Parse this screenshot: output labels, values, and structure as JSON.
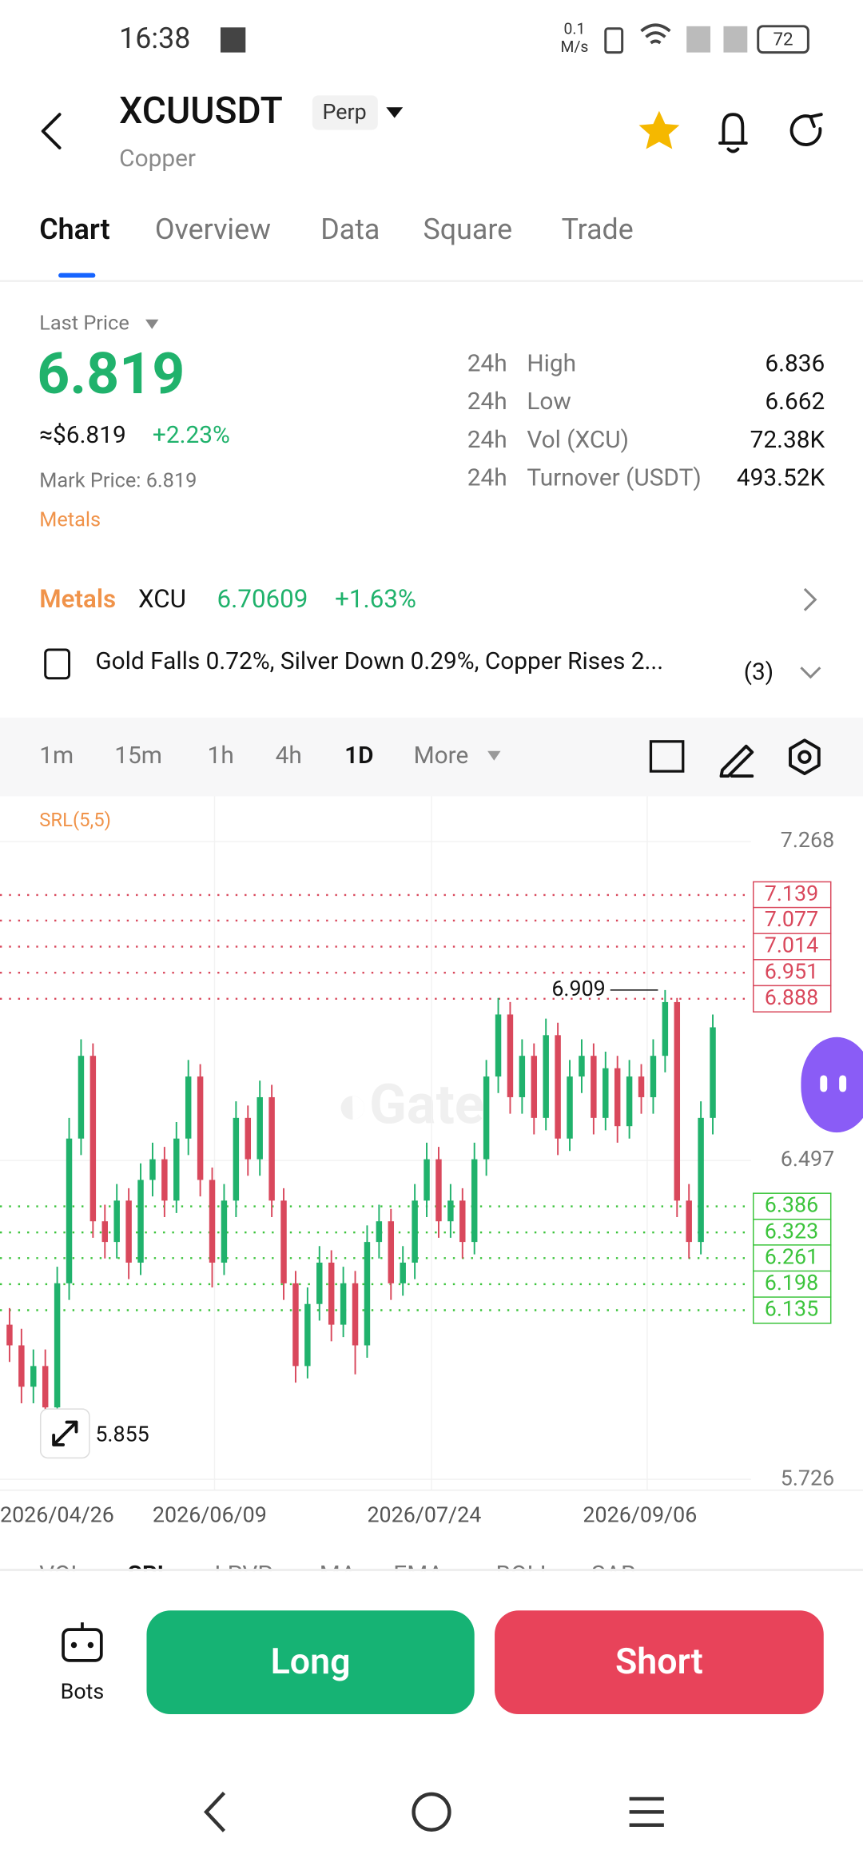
{
  "status_bar": {
    "time": "16:38",
    "speed": "0.1",
    "speed_unit": "M/s",
    "battery": "72"
  },
  "header": {
    "symbol": "XCUUSDT",
    "tag": "Perp",
    "name": "Copper"
  },
  "tabs": [
    "Chart",
    "Overview",
    "Data",
    "Square",
    "Trade"
  ],
  "price": {
    "label": "Last Price",
    "value": "6.819",
    "usd": "≈$6.819",
    "change": "+2.23%",
    "mark": "Mark Price: 6.819",
    "category": "Metals"
  },
  "stats": [
    [
      "24h",
      "High",
      "6.836"
    ],
    [
      "24h",
      "Low",
      "6.662"
    ],
    [
      "24h",
      "Vol (XCU)",
      "72.38K"
    ],
    [
      "24h",
      "Turnover (USDT)",
      "493.52K"
    ]
  ],
  "index": {
    "category": "Metals",
    "symbol": "XCU",
    "price": "6.70609",
    "change": "+1.63%"
  },
  "news": {
    "text": "Gold Falls 0.72%, Silver Down 0.29%, Copper Rises 2...",
    "count": "(3)"
  },
  "intervals": [
    "1m",
    "15m",
    "1h",
    "4h",
    "1D",
    "More"
  ],
  "chart_data": {
    "type": "candlestick",
    "indicator": "SRL(5,5)",
    "ylim": [
      5.726,
      7.268
    ],
    "yticks": [
      5.726,
      6.497,
      7.268
    ],
    "resistance": [
      7.139,
      7.077,
      7.014,
      6.951,
      6.888
    ],
    "support": [
      6.386,
      6.323,
      6.261,
      6.198,
      6.135
    ],
    "high_label": 6.909,
    "low_label": 5.855,
    "x_labels": [
      "2026/04/26",
      "2026/06/09",
      "2026/07/24",
      "2026/09/06"
    ],
    "up_color": "#20b26c",
    "down_color": "#d9485c",
    "candles": [
      [
        6.1,
        6.14,
        6.01,
        6.05
      ],
      [
        6.05,
        6.09,
        5.91,
        5.95
      ],
      [
        5.95,
        6.04,
        5.91,
        6.0
      ],
      [
        6.0,
        6.04,
        5.855,
        5.9
      ],
      [
        5.9,
        6.24,
        5.88,
        6.2
      ],
      [
        6.2,
        6.6,
        6.16,
        6.55
      ],
      [
        6.55,
        6.79,
        6.51,
        6.75
      ],
      [
        6.75,
        6.78,
        6.31,
        6.35
      ],
      [
        6.35,
        6.39,
        6.26,
        6.3
      ],
      [
        6.3,
        6.44,
        6.26,
        6.4
      ],
      [
        6.4,
        6.43,
        6.21,
        6.25
      ],
      [
        6.25,
        6.49,
        6.22,
        6.45
      ],
      [
        6.45,
        6.54,
        6.41,
        6.5
      ],
      [
        6.5,
        6.53,
        6.36,
        6.4
      ],
      [
        6.4,
        6.59,
        6.37,
        6.55
      ],
      [
        6.55,
        6.74,
        6.51,
        6.7
      ],
      [
        6.7,
        6.73,
        6.41,
        6.45
      ],
      [
        6.45,
        6.48,
        6.19,
        6.25
      ],
      [
        6.25,
        6.44,
        6.22,
        6.4
      ],
      [
        6.4,
        6.64,
        6.36,
        6.6
      ],
      [
        6.6,
        6.63,
        6.46,
        6.5
      ],
      [
        6.5,
        6.69,
        6.46,
        6.65
      ],
      [
        6.65,
        6.68,
        6.36,
        6.4
      ],
      [
        6.4,
        6.43,
        6.16,
        6.2
      ],
      [
        6.2,
        6.23,
        5.96,
        6.0
      ],
      [
        6.0,
        6.19,
        5.97,
        6.15
      ],
      [
        6.15,
        6.29,
        6.11,
        6.25
      ],
      [
        6.25,
        6.28,
        6.06,
        6.1
      ],
      [
        6.1,
        6.24,
        6.07,
        6.2
      ],
      [
        6.2,
        6.23,
        5.98,
        6.05
      ],
      [
        6.05,
        6.34,
        6.02,
        6.3
      ],
      [
        6.3,
        6.39,
        6.26,
        6.35
      ],
      [
        6.35,
        6.38,
        6.16,
        6.2
      ],
      [
        6.2,
        6.29,
        6.17,
        6.25
      ],
      [
        6.25,
        6.44,
        6.21,
        6.4
      ],
      [
        6.4,
        6.54,
        6.36,
        6.5
      ],
      [
        6.5,
        6.53,
        6.31,
        6.35
      ],
      [
        6.35,
        6.44,
        6.31,
        6.4
      ],
      [
        6.4,
        6.43,
        6.26,
        6.3
      ],
      [
        6.3,
        6.54,
        6.27,
        6.5
      ],
      [
        6.5,
        6.74,
        6.46,
        6.7
      ],
      [
        6.7,
        6.89,
        6.66,
        6.85
      ],
      [
        6.85,
        6.88,
        6.61,
        6.65
      ],
      [
        6.65,
        6.79,
        6.61,
        6.75
      ],
      [
        6.75,
        6.78,
        6.56,
        6.6
      ],
      [
        6.6,
        6.84,
        6.57,
        6.8
      ],
      [
        6.8,
        6.83,
        6.51,
        6.55
      ],
      [
        6.55,
        6.74,
        6.52,
        6.7
      ],
      [
        6.7,
        6.79,
        6.66,
        6.75
      ],
      [
        6.75,
        6.78,
        6.56,
        6.6
      ],
      [
        6.6,
        6.76,
        6.57,
        6.72
      ],
      [
        6.72,
        6.75,
        6.54,
        6.58
      ],
      [
        6.58,
        6.74,
        6.55,
        6.7
      ],
      [
        6.7,
        6.73,
        6.61,
        6.65
      ],
      [
        6.65,
        6.79,
        6.61,
        6.75
      ],
      [
        6.75,
        6.909,
        6.71,
        6.88
      ],
      [
        6.88,
        6.89,
        6.36,
        6.4
      ],
      [
        6.4,
        6.44,
        6.26,
        6.3
      ],
      [
        6.3,
        6.64,
        6.27,
        6.6
      ],
      [
        6.6,
        6.85,
        6.56,
        6.819
      ]
    ]
  },
  "indicator_tabs": [
    "VOL",
    "SRL",
    "LPVP",
    "MA",
    "EMA",
    "BOLL",
    "SAR"
  ],
  "actions": {
    "bots": "Bots",
    "long": "Long",
    "short": "Short"
  }
}
